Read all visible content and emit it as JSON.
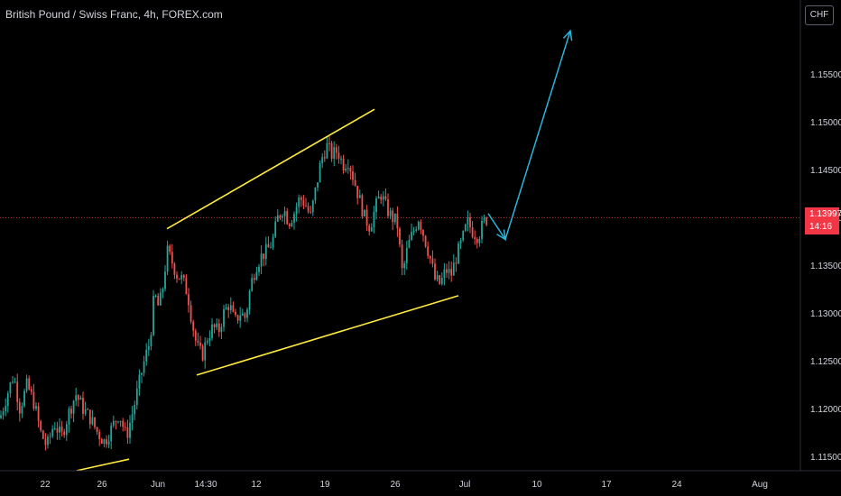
{
  "header": {
    "title": "British Pound / Swiss Franc, 4h, FOREX.com"
  },
  "axis": {
    "currency_label": "CHF"
  },
  "last_price": {
    "value": "1.13997",
    "countdown": "14:16"
  },
  "colors": {
    "up": "#26a69a",
    "down": "#ef5350",
    "background": "#000000",
    "trendline": "#ffeb3b",
    "arrow": "#29b6d9",
    "price_line": "#f23645"
  },
  "chart_data": {
    "type": "candlestick",
    "title": "British Pound / Swiss Franc, 4h, FOREX.com",
    "y_ticks": [
      "1.15500",
      "1.15000",
      "1.14500",
      "1.14000",
      "1.13500",
      "1.13000",
      "1.12500",
      "1.12000",
      "1.11500"
    ],
    "y_values": [
      1.155,
      1.15,
      1.145,
      1.14,
      1.135,
      1.13,
      1.125,
      1.12,
      1.115
    ],
    "x_ticks": [
      "22",
      "26",
      "Jun",
      "14:30",
      "12",
      "19",
      "26",
      "Jul",
      "10",
      "17",
      "24",
      "Aug"
    ],
    "ylim": [
      1.1125,
      1.16
    ],
    "last_price": 1.13997,
    "price_path": [
      [
        0,
        1.119
      ],
      [
        8,
        1.1215
      ],
      [
        15,
        1.1235
      ],
      [
        22,
        1.12
      ],
      [
        30,
        1.1225
      ],
      [
        38,
        1.1205
      ],
      [
        45,
        1.1175
      ],
      [
        52,
        1.116
      ],
      [
        60,
        1.1185
      ],
      [
        68,
        1.117
      ],
      [
        76,
        1.1195
      ],
      [
        84,
        1.1215
      ],
      [
        92,
        1.12
      ],
      [
        100,
        1.119
      ],
      [
        108,
        1.1175
      ],
      [
        116,
        1.1165
      ],
      [
        124,
        1.118
      ],
      [
        132,
        1.1195
      ],
      [
        140,
        1.117
      ],
      [
        148,
        1.12
      ],
      [
        155,
        1.123
      ],
      [
        160,
        1.125
      ],
      [
        166,
        1.127
      ],
      [
        171,
        1.132
      ],
      [
        176,
        1.1305
      ],
      [
        181,
        1.133
      ],
      [
        185,
        1.1365
      ],
      [
        190,
        1.1355
      ],
      [
        196,
        1.134
      ],
      [
        202,
        1.1335
      ],
      [
        208,
        1.132
      ],
      [
        213,
        1.129
      ],
      [
        218,
        1.1265
      ],
      [
        224,
        1.1255
      ],
      [
        230,
        1.1275
      ],
      [
        236,
        1.1285
      ],
      [
        242,
        1.128
      ],
      [
        248,
        1.13
      ],
      [
        254,
        1.131
      ],
      [
        260,
        1.129
      ],
      [
        266,
        1.13
      ],
      [
        272,
        1.1295
      ],
      [
        278,
        1.133
      ],
      [
        284,
        1.135
      ],
      [
        290,
        1.136
      ],
      [
        296,
        1.1365
      ],
      [
        302,
        1.1375
      ],
      [
        308,
        1.14
      ],
      [
        314,
        1.141
      ],
      [
        320,
        1.1395
      ],
      [
        326,
        1.1405
      ],
      [
        332,
        1.142
      ],
      [
        338,
        1.1415
      ],
      [
        344,
        1.14
      ],
      [
        350,
        1.143
      ],
      [
        356,
        1.146
      ],
      [
        362,
        1.1475
      ],
      [
        368,
        1.1465
      ],
      [
        374,
        1.147
      ],
      [
        380,
        1.1455
      ],
      [
        386,
        1.146
      ],
      [
        392,
        1.144
      ],
      [
        398,
        1.142
      ],
      [
        404,
        1.14
      ],
      [
        410,
        1.139
      ],
      [
        416,
        1.141
      ],
      [
        422,
        1.1425
      ],
      [
        428,
        1.141
      ],
      [
        434,
        1.14
      ],
      [
        440,
        1.1395
      ],
      [
        446,
        1.134
      ],
      [
        452,
        1.137
      ],
      [
        458,
        1.1385
      ],
      [
        464,
        1.14
      ],
      [
        470,
        1.138
      ],
      [
        476,
        1.136
      ],
      [
        482,
        1.1335
      ],
      [
        488,
        1.133
      ],
      [
        494,
        1.1345
      ],
      [
        500,
        1.134
      ],
      [
        506,
        1.136
      ],
      [
        512,
        1.1375
      ],
      [
        518,
        1.1395
      ],
      [
        524,
        1.1385
      ],
      [
        530,
        1.138
      ],
      [
        536,
        1.1395
      ],
      [
        541,
        1.14
      ]
    ],
    "drawings": {
      "channel_upper": [
        [
          185,
          1.1388
        ],
        [
          415,
          1.1513
        ]
      ],
      "channel_lower": [
        [
          218,
          1.1235
        ],
        [
          508,
          1.1318
        ]
      ],
      "bottom_line": [
        [
          85,
          1.1135
        ],
        [
          143,
          1.1147
        ]
      ],
      "forecast_arrow": [
        [
          541,
          1.1404
        ],
        [
          560,
          1.1377
        ],
        [
          632,
          1.1595
        ]
      ]
    }
  }
}
